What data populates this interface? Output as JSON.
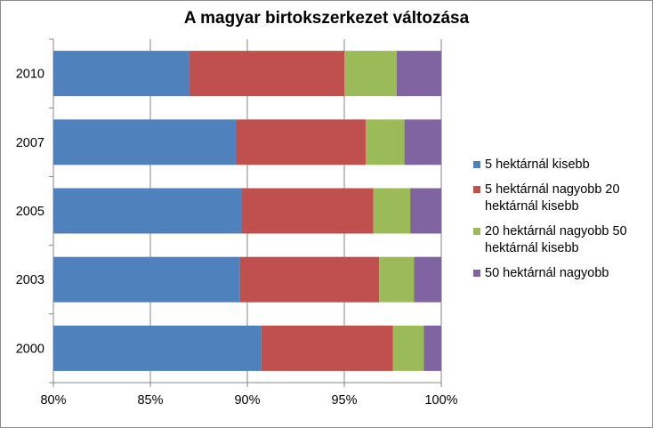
{
  "chart_data": {
    "type": "bar",
    "orientation": "horizontal",
    "stacked": "percent",
    "title": "A magyar birtokszerkezet változása",
    "xlabel": "",
    "ylabel": "",
    "categories": [
      "2010",
      "2007",
      "2005",
      "2003",
      "2000"
    ],
    "xlim": [
      80,
      100
    ],
    "xticks": [
      "80%",
      "85%",
      "90%",
      "95%",
      "100%"
    ],
    "grid": true,
    "legend_position": "right",
    "series": [
      {
        "name": "5 hektárnál kisebb",
        "color": "#4f81bd",
        "values": [
          87.0,
          89.4,
          89.7,
          89.6,
          90.7
        ]
      },
      {
        "name": "5 hektárnál nagyobb 20 hektárnál kisebb",
        "color": "#c0504d",
        "values": [
          8.0,
          6.7,
          6.8,
          7.2,
          6.8
        ]
      },
      {
        "name": "20 hektárnál nagyobb 50 hektárnál kisebb",
        "color": "#9bbb59",
        "values": [
          2.7,
          2.0,
          1.9,
          1.8,
          1.6
        ]
      },
      {
        "name": "50 hektárnál nagyobb",
        "color": "#8064a2",
        "values": [
          2.3,
          1.9,
          1.6,
          1.4,
          0.9
        ]
      }
    ]
  }
}
